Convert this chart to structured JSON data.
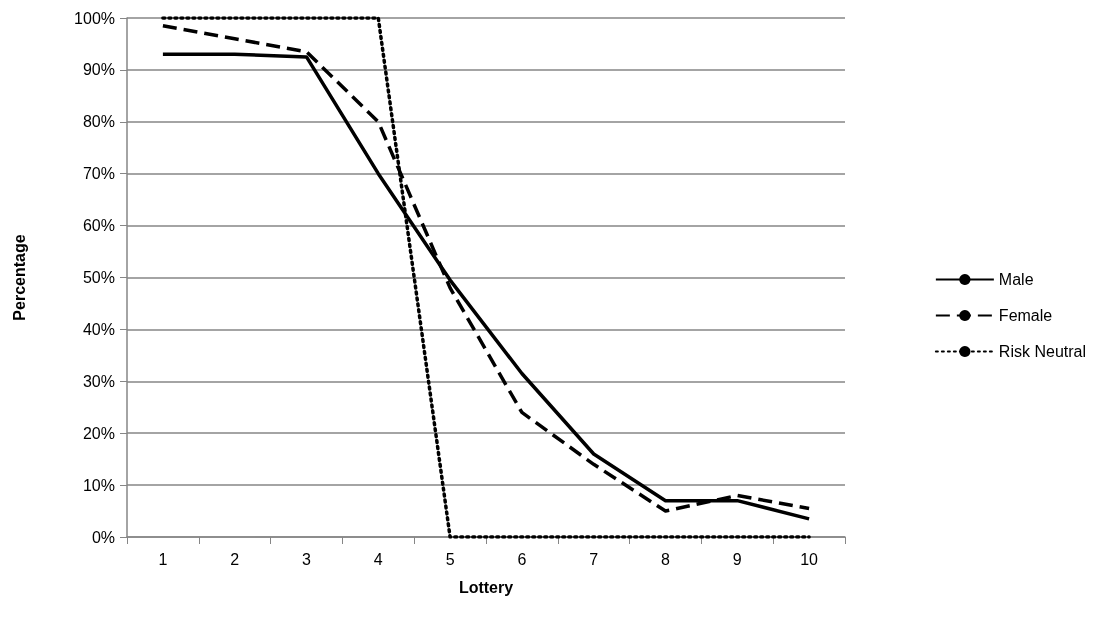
{
  "chart_data": {
    "type": "line",
    "xlabel": "Lottery",
    "ylabel": "Percentage",
    "categories": [
      "1",
      "2",
      "3",
      "4",
      "5",
      "6",
      "7",
      "8",
      "9",
      "10"
    ],
    "series": [
      {
        "name": "Male",
        "color": "#000000",
        "line_style": "solid",
        "values": [
          93,
          93,
          92.5,
          70,
          49.5,
          31.5,
          16,
          7,
          7,
          3.5
        ]
      },
      {
        "name": "Female",
        "color": "#000000",
        "line_style": "dashed",
        "values": [
          98.5,
          96,
          93.5,
          80,
          48,
          24,
          14,
          5,
          8,
          5.5
        ]
      },
      {
        "name": "Risk Neutral",
        "color": "#000000",
        "line_style": "dotted",
        "values": [
          100,
          100,
          100,
          100,
          0,
          0,
          0,
          0,
          0,
          0
        ]
      }
    ],
    "ylim": [
      0,
      100
    ],
    "yticks": [
      {
        "value": 0,
        "label": "0%"
      },
      {
        "value": 10,
        "label": "10%"
      },
      {
        "value": 20,
        "label": "20%"
      },
      {
        "value": 30,
        "label": "30%"
      },
      {
        "value": 40,
        "label": "40%"
      },
      {
        "value": 50,
        "label": "50%"
      },
      {
        "value": 60,
        "label": "60%"
      },
      {
        "value": 70,
        "label": "70%"
      },
      {
        "value": 80,
        "label": "80%"
      },
      {
        "value": 90,
        "label": "90%"
      },
      {
        "value": 100,
        "label": "100%"
      }
    ],
    "grid": "y",
    "legend": "right",
    "marker": "none"
  }
}
